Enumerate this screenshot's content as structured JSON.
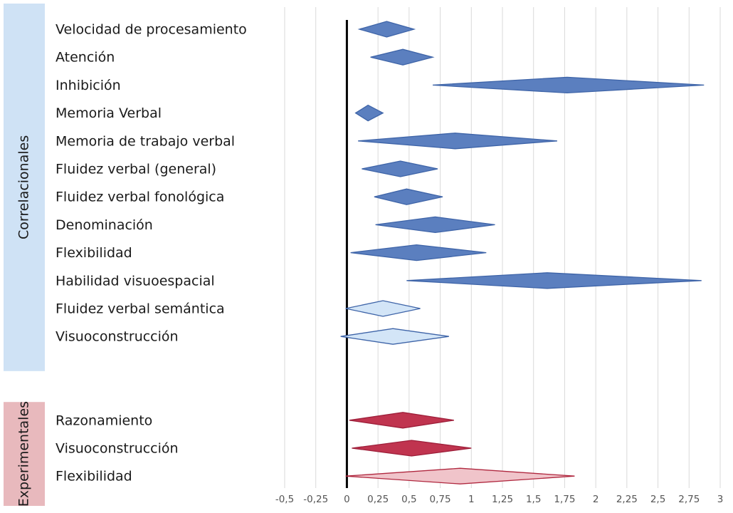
{
  "chart_data": {
    "type": "forest",
    "xlim": [
      -0.5,
      3
    ],
    "xticks": [
      {
        "value": -0.5,
        "label": "-0,5"
      },
      {
        "value": -0.25,
        "label": "-0,25"
      },
      0,
      {
        "value": 0.25,
        "label": "0,25"
      },
      {
        "value": 0.5,
        "label": "0,5"
      },
      {
        "value": 0.75,
        "label": "0,75"
      },
      1,
      {
        "value": 1.25,
        "label": "1,25"
      },
      {
        "value": 1.5,
        "label": "1,5"
      },
      {
        "value": 1.75,
        "label": "1,75"
      },
      2,
      {
        "value": 2.25,
        "label": "2,25"
      },
      {
        "value": 2.5,
        "label": "2,5"
      },
      {
        "value": 2.75,
        "label": "2,75"
      },
      3
    ],
    "grid": true,
    "groups": [
      {
        "name": "Correlacionales",
        "color": "#cfe2f5",
        "rows": [
          {
            "label": "Velocidad de procesamiento",
            "lower": 0.1,
            "estimate": 0.32,
            "upper": 0.54,
            "fill": "#5b7fbf",
            "stroke": "#3e64a8"
          },
          {
            "label": "Atención",
            "lower": 0.19,
            "estimate": 0.45,
            "upper": 0.69,
            "fill": "#5b7fbf",
            "stroke": "#3e64a8"
          },
          {
            "label": "Inhibición",
            "lower": 0.69,
            "estimate": 1.77,
            "upper": 2.87,
            "fill": "#5b7fbf",
            "stroke": "#3e64a8"
          },
          {
            "label": "Memoria Verbal",
            "lower": 0.07,
            "estimate": 0.17,
            "upper": 0.29,
            "fill": "#5b7fbf",
            "stroke": "#3e64a8"
          },
          {
            "label": "Memoria de trabajo verbal",
            "lower": 0.09,
            "estimate": 0.87,
            "upper": 1.69,
            "fill": "#5b7fbf",
            "stroke": "#3e64a8"
          },
          {
            "label": "Fluidez verbal (general)",
            "lower": 0.12,
            "estimate": 0.43,
            "upper": 0.73,
            "fill": "#5b7fbf",
            "stroke": "#3e64a8"
          },
          {
            "label": "Fluidez verbal fonológica",
            "lower": 0.22,
            "estimate": 0.48,
            "upper": 0.77,
            "fill": "#5b7fbf",
            "stroke": "#3e64a8"
          },
          {
            "label": "Denominación",
            "lower": 0.23,
            "estimate": 0.71,
            "upper": 1.19,
            "fill": "#5b7fbf",
            "stroke": "#3e64a8"
          },
          {
            "label": "Flexibilidad",
            "lower": 0.03,
            "estimate": 0.56,
            "upper": 1.12,
            "fill": "#5b7fbf",
            "stroke": "#3e64a8"
          },
          {
            "label": "Habilidad visuoespacial",
            "lower": 0.48,
            "estimate": 1.61,
            "upper": 2.85,
            "fill": "#5b7fbf",
            "stroke": "#3e64a8"
          },
          {
            "label": "Fluidez verbal semántica",
            "lower": -0.01,
            "estimate": 0.29,
            "upper": 0.59,
            "fill": "#d3e5f7",
            "stroke": "#3e64a8"
          },
          {
            "label": "Visuoconstrucción",
            "lower": -0.05,
            "estimate": 0.37,
            "upper": 0.82,
            "fill": "#d3e5f7",
            "stroke": "#3e64a8"
          }
        ]
      },
      {
        "name": "Experimentales",
        "color": "#e8b9bd",
        "rows": [
          {
            "label": "Razonamiento",
            "lower": 0.02,
            "estimate": 0.45,
            "upper": 0.86,
            "fill": "#c0344f",
            "stroke": "#9e1f3a"
          },
          {
            "label": "Visuoconstrucción",
            "lower": 0.04,
            "estimate": 0.52,
            "upper": 1.0,
            "fill": "#c0344f",
            "stroke": "#9e1f3a"
          },
          {
            "label": "Flexibilidad",
            "lower": -0.01,
            "estimate": 0.91,
            "upper": 1.83,
            "fill": "#f0c4ca",
            "stroke": "#b0283f"
          }
        ]
      }
    ]
  }
}
